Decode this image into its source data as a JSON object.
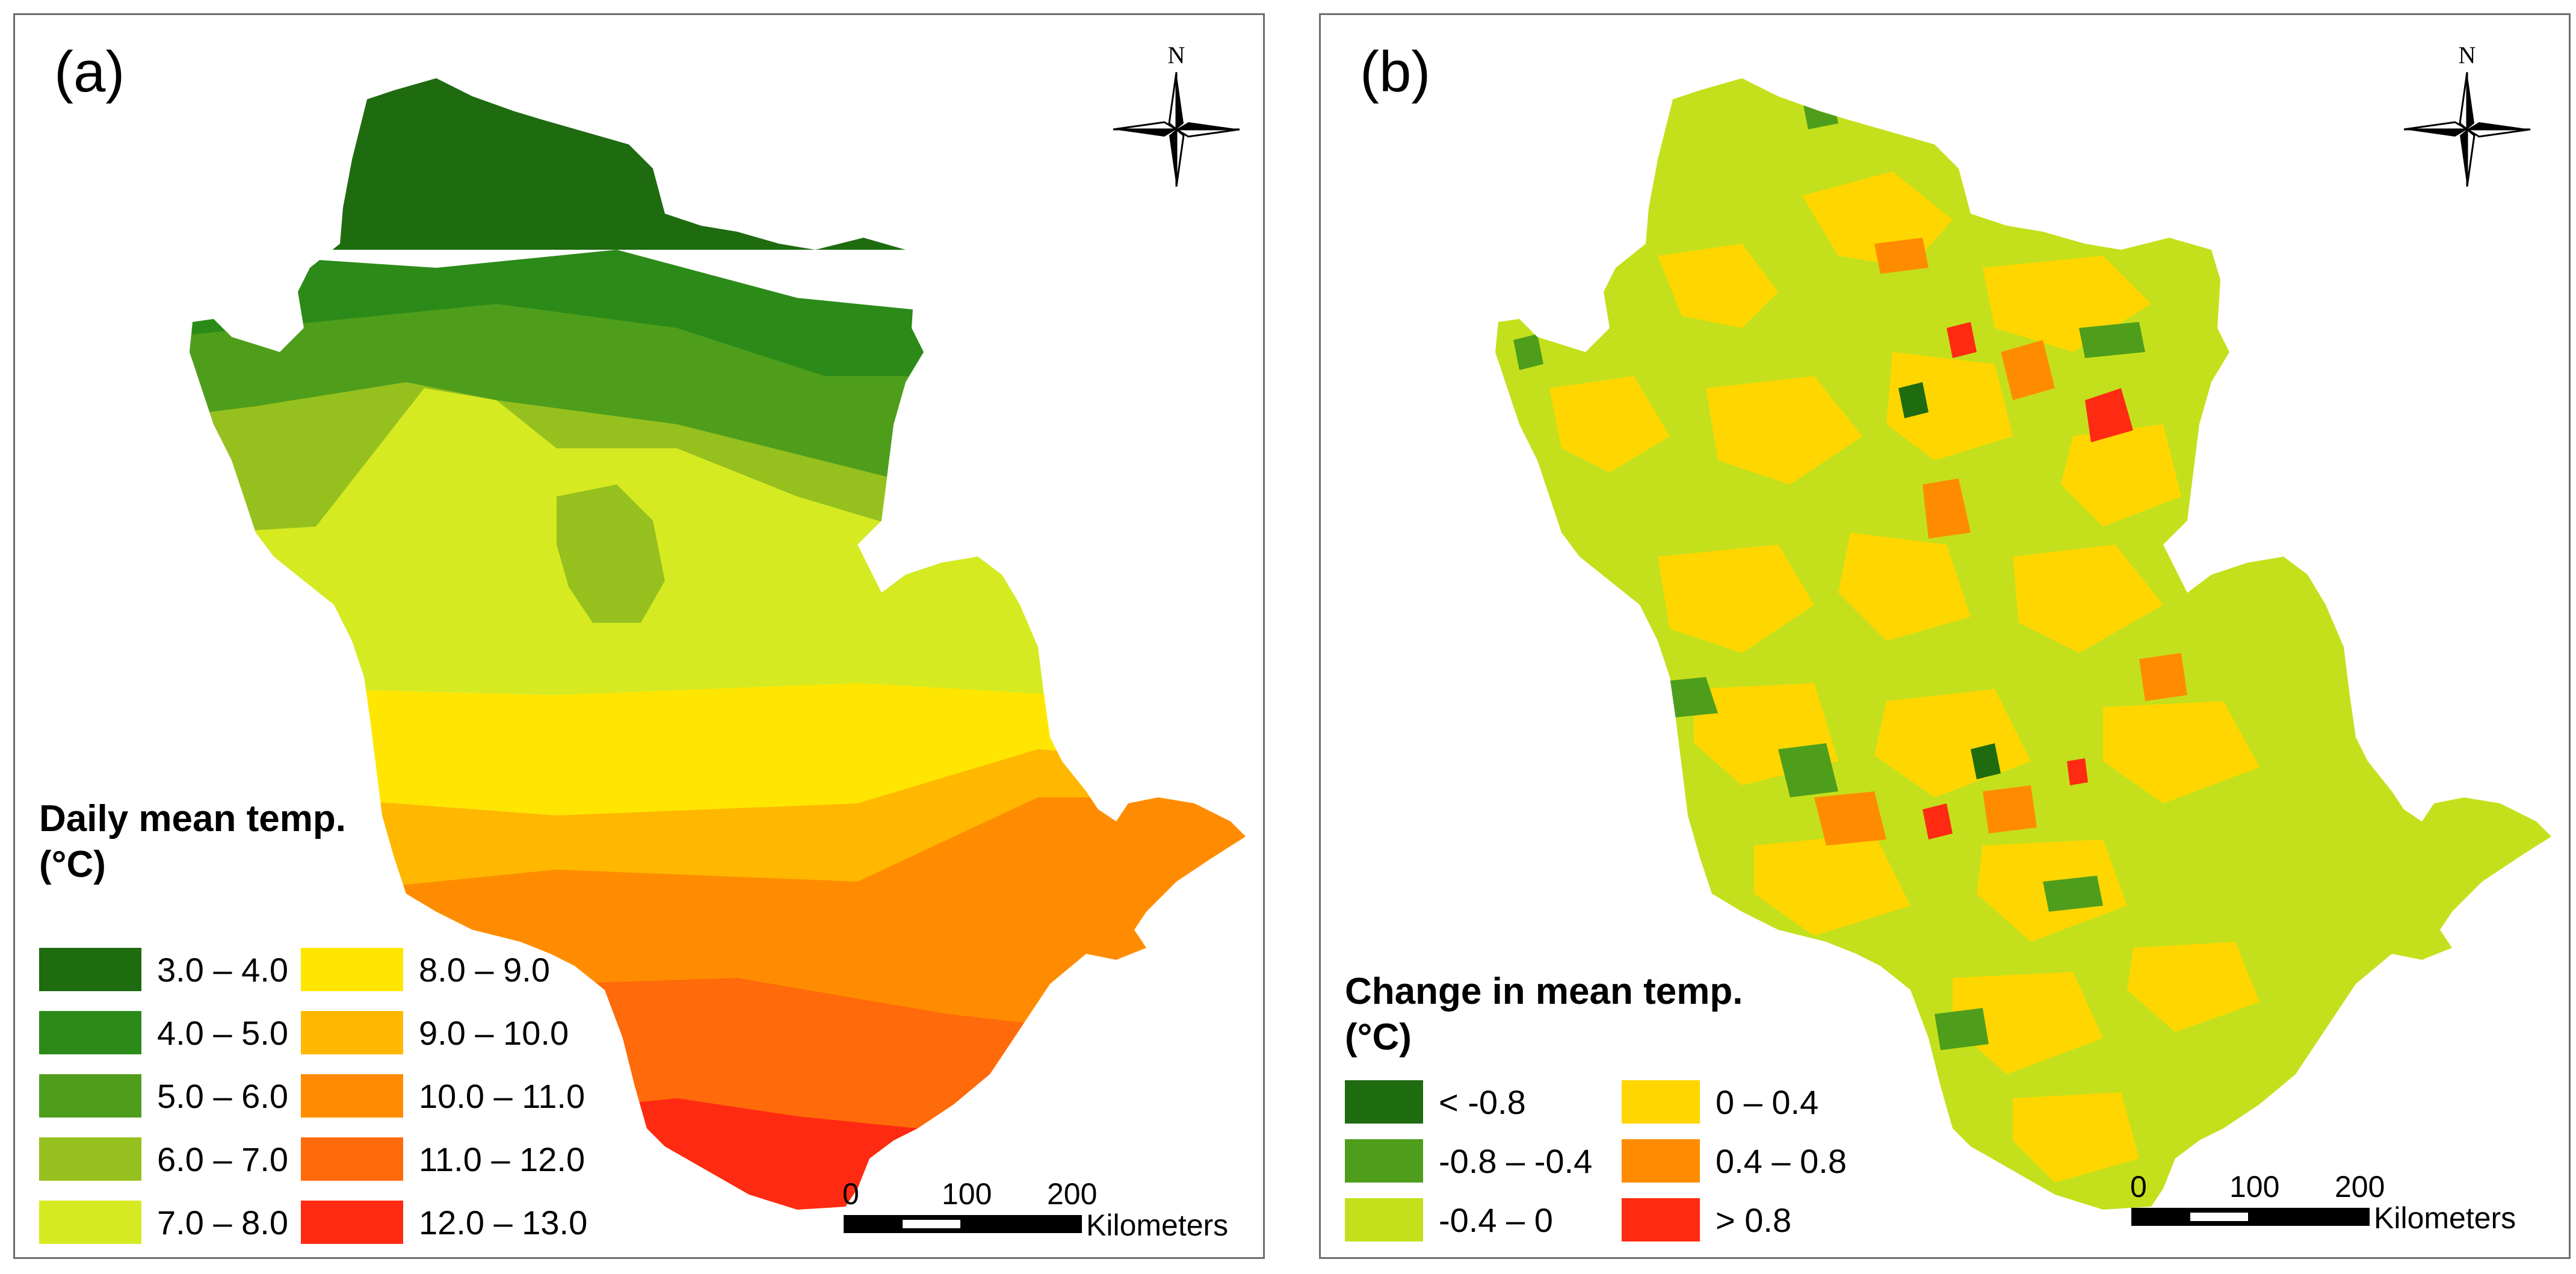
{
  "panel_a": {
    "label": "(a)",
    "north_label": "N",
    "legend": {
      "title_line1": "Daily mean temp.",
      "title_line2": "(°C)",
      "items": [
        {
          "label": "3.0 – 4.0",
          "color": "#1e6b10"
        },
        {
          "label": "4.0 – 5.0",
          "color": "#2c8a18"
        },
        {
          "label": "5.0 – 6.0",
          "color": "#4e9e1c"
        },
        {
          "label": "6.0 – 7.0",
          "color": "#96c01e"
        },
        {
          "label": "7.0 – 8.0",
          "color": "#d6ea22"
        },
        {
          "label": "8.0 – 9.0",
          "color": "#ffe600"
        },
        {
          "label": "9.0 – 10.0",
          "color": "#ffb700"
        },
        {
          "label": "10.0 – 11.0",
          "color": "#ff8c00"
        },
        {
          "label": "11.0 – 12.0",
          "color": "#ff6a0a"
        },
        {
          "label": "12.0 – 13.0",
          "color": "#ff2a12"
        }
      ]
    },
    "scale": {
      "ticks": [
        "0",
        "100",
        "200"
      ],
      "unit": "Kilometers"
    }
  },
  "panel_b": {
    "label": "(b)",
    "north_label": "N",
    "legend": {
      "title_line1": "Change in mean temp.",
      "title_line2": "(°C)",
      "items": [
        {
          "label": "< -0.8",
          "color": "#1e6b10"
        },
        {
          "label": "-0.8 –  -0.4",
          "color": "#4e9e1c"
        },
        {
          "label": "-0.4 – 0",
          "color": "#c4e01c"
        },
        {
          "label": "0 – 0.4",
          "color": "#ffd600"
        },
        {
          "label": "0.4 – 0.8",
          "color": "#ff8c00"
        },
        {
          "label": "> 0.8",
          "color": "#ff2a12"
        }
      ]
    },
    "scale": {
      "ticks": [
        "0",
        "100",
        "200"
      ],
      "unit": "Kilometers"
    }
  }
}
